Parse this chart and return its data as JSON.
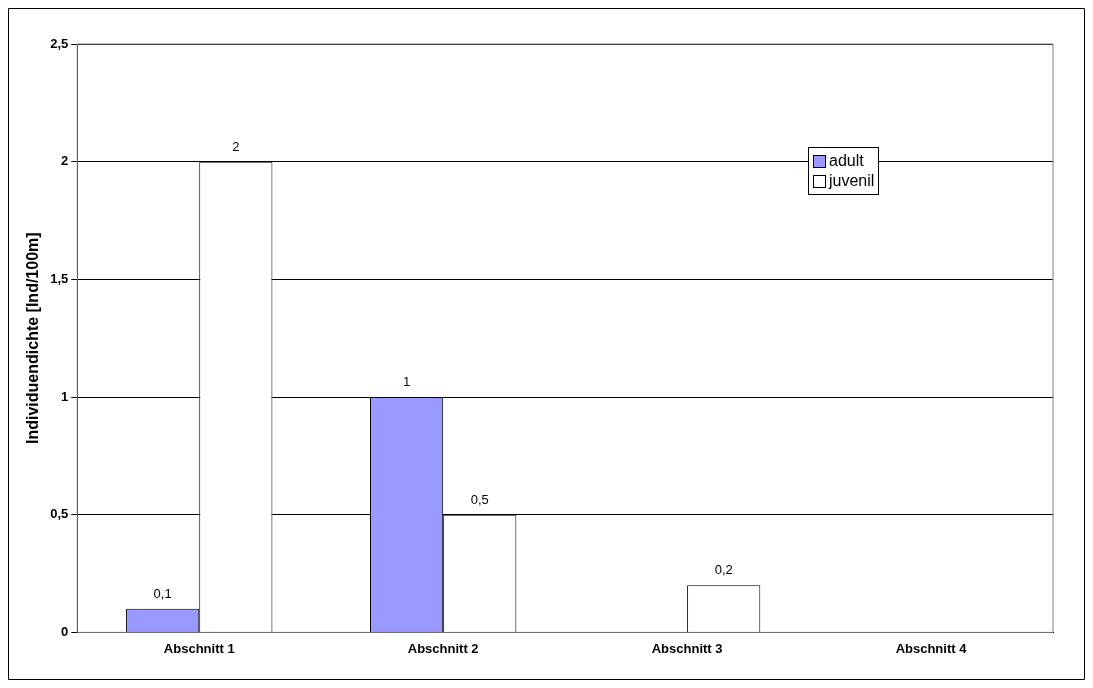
{
  "chart_data": {
    "type": "bar",
    "ylabel": "Individuendichte [Ind/100m]",
    "categories": [
      "Abschnitt 1",
      "Abschnitt 2",
      "Abschnitt 3",
      "Abschnitt 4"
    ],
    "series": [
      {
        "name": "adult",
        "color": "#9999ff",
        "values": [
          0.1,
          1,
          null,
          null
        ],
        "value_labels": [
          "0,1",
          "1",
          null,
          null
        ]
      },
      {
        "name": "juvenil",
        "color": "#ffffff",
        "values": [
          2,
          0.5,
          0.2,
          null
        ],
        "value_labels": [
          "2",
          "0,5",
          "0,2",
          null
        ]
      }
    ],
    "ylim": [
      0,
      2.5
    ],
    "yticks": [
      0,
      {
        "value": 0.5,
        "label": "0,5"
      },
      1,
      {
        "value": 1.5,
        "label": "1,5"
      },
      2,
      {
        "value": 2.5,
        "label": "2,5"
      }
    ],
    "grid": "y",
    "legend": "top right"
  }
}
